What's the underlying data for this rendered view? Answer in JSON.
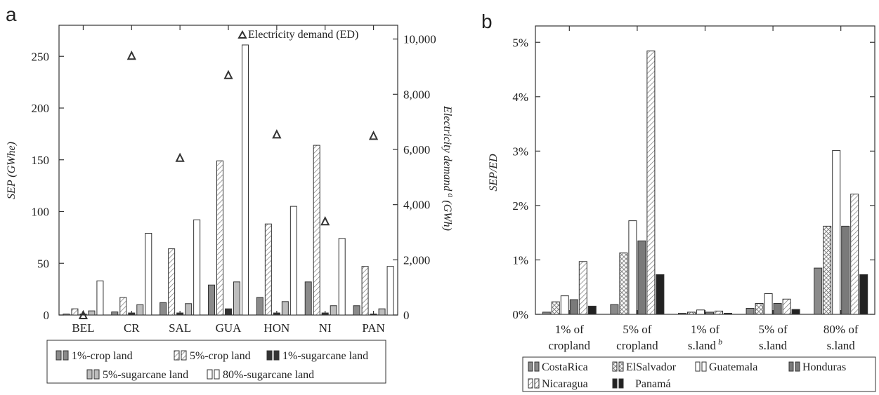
{
  "panel_a": {
    "letter": "a",
    "y_label": "SEP (GWhe)",
    "y2_label_main": "Electricity demand",
    "y2_label_sup": "a",
    "y2_label_unit": "(GWh)",
    "y_ticks": [
      "0",
      "50",
      "100",
      "150",
      "200",
      "250"
    ],
    "y2_ticks": [
      "0",
      "2,000",
      "4,000",
      "6,000",
      "8,000",
      "10,000"
    ],
    "ed_legend": "Electricity demand (ED)",
    "legend": [
      "1%-crop land",
      "5%-crop land",
      "1%-sugarcane land",
      "5%-sugarcane land",
      "80%-sugarcane land"
    ]
  },
  "panel_b": {
    "letter": "b",
    "y_label": "SEP/ED",
    "y_ticks": [
      "0%",
      "1%",
      "2%",
      "3%",
      "4%",
      "5%"
    ],
    "categories_line1": [
      "1% of",
      "5% of",
      "1% of",
      "5% of",
      "80% of"
    ],
    "categories_line2": [
      "cropland",
      "cropland",
      "s.land",
      "s.land",
      "s.land"
    ],
    "category_sup": [
      "",
      "",
      "b",
      "",
      ""
    ],
    "legend": [
      "CostaRica",
      "ElSalvador",
      "Guatemala",
      "Honduras",
      "Nicaragua",
      "Panamá"
    ]
  },
  "chart_data": [
    {
      "type": "bar",
      "title": "",
      "categories": [
        "BEL",
        "CR",
        "SAL",
        "GUA",
        "HON",
        "NI",
        "PAN"
      ],
      "ylabel": "SEP (GWhe)",
      "ylim": [
        0,
        280
      ],
      "y2label": "Electricity demand (GWh)",
      "y2lim": [
        0,
        10500
      ],
      "series": [
        {
          "name": "1%-crop land",
          "values": [
            1,
            3,
            12,
            29,
            17,
            32,
            9
          ],
          "color": "#8a8a8a",
          "pattern": "solid"
        },
        {
          "name": "5%-crop land",
          "values": [
            6,
            17,
            64,
            149,
            88,
            164,
            47
          ],
          "color": "#ffffff",
          "pattern": "diagonal"
        },
        {
          "name": "1%-sugarcane land",
          "values": [
            1,
            2,
            2,
            6,
            2,
            2,
            1
          ],
          "color": "#333333",
          "pattern": "solid"
        },
        {
          "name": "5%-sugarcane land",
          "values": [
            4,
            10,
            11,
            32,
            13,
            9,
            6
          ],
          "color": "#bdbdbd",
          "pattern": "solid"
        },
        {
          "name": "80%-sugarcane land",
          "values": [
            33,
            79,
            92,
            261,
            105,
            74,
            47
          ],
          "color": "#ffffff",
          "pattern": "solid"
        }
      ],
      "ed_series": {
        "name": "Electricity demand (ED)",
        "values": [
          0,
          9400,
          5700,
          8700,
          6550,
          3400,
          6500
        ],
        "axis": "right",
        "marker": "triangle"
      },
      "legend_position": "bottom"
    },
    {
      "type": "bar",
      "title": "",
      "categories": [
        "1% of cropland",
        "5% of cropland",
        "1% of s.land",
        "5% of s.land",
        "80% of s.land"
      ],
      "ylabel": "SEP/ED",
      "ylim": [
        0,
        5.3
      ],
      "y_unit": "%",
      "series": [
        {
          "name": "CostaRica",
          "values": [
            0.04,
            0.18,
            0.02,
            0.11,
            0.85
          ],
          "color": "#8a8a8a",
          "pattern": "solid"
        },
        {
          "name": "ElSalvador",
          "values": [
            0.23,
            1.13,
            0.04,
            0.2,
            1.62
          ],
          "color": "#ffffff",
          "pattern": "cross"
        },
        {
          "name": "Guatemala",
          "values": [
            0.34,
            1.72,
            0.08,
            0.38,
            3.01
          ],
          "color": "#ffffff",
          "pattern": "solid"
        },
        {
          "name": "Honduras",
          "values": [
            0.27,
            1.35,
            0.04,
            0.2,
            1.62
          ],
          "color": "#7a7a7a",
          "pattern": "solid"
        },
        {
          "name": "Nicaragua",
          "values": [
            0.97,
            4.84,
            0.06,
            0.28,
            2.21
          ],
          "color": "#ffffff",
          "pattern": "diagonal"
        },
        {
          "name": "Panamá",
          "values": [
            0.15,
            0.73,
            0.02,
            0.09,
            0.73
          ],
          "color": "#222222",
          "pattern": "solid"
        }
      ],
      "legend_position": "bottom"
    }
  ]
}
